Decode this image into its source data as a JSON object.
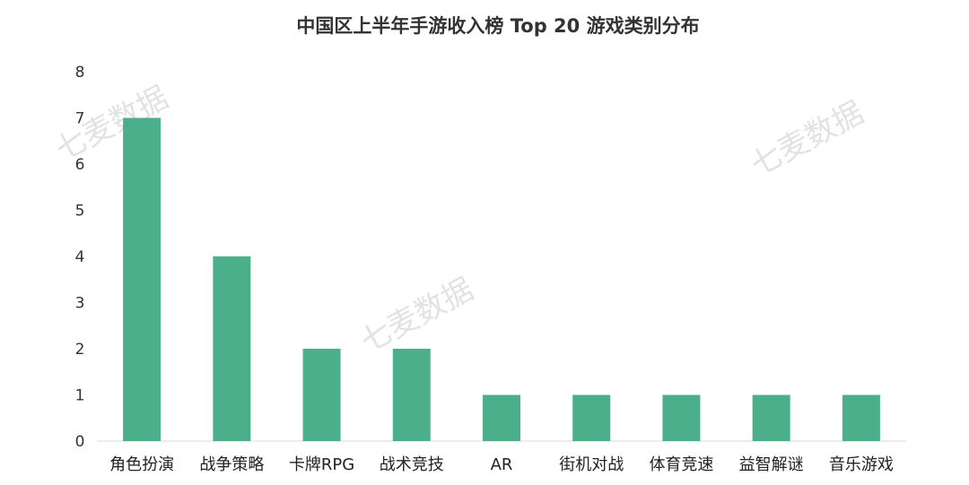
{
  "chart_data": {
    "type": "bar",
    "title": "中国区上半年手游收入榜 Top 20 游戏类别分布",
    "xlabel": "",
    "ylabel": "",
    "categories": [
      "角色扮演",
      "战争策略",
      "卡牌RPG",
      "战术竞技",
      "AR",
      "街机对战",
      "体育竞速",
      "益智解谜",
      "音乐游戏"
    ],
    "values": [
      7,
      4,
      2,
      2,
      1,
      1,
      1,
      1,
      1
    ],
    "ylim": [
      0,
      8
    ],
    "yticks": [
      0,
      1,
      2,
      3,
      4,
      5,
      6,
      7,
      8
    ],
    "bar_color": "#4caf8c",
    "grid": false,
    "legend": "none"
  },
  "watermark": {
    "text": "七麦数据",
    "color": "#d9d9d9"
  }
}
